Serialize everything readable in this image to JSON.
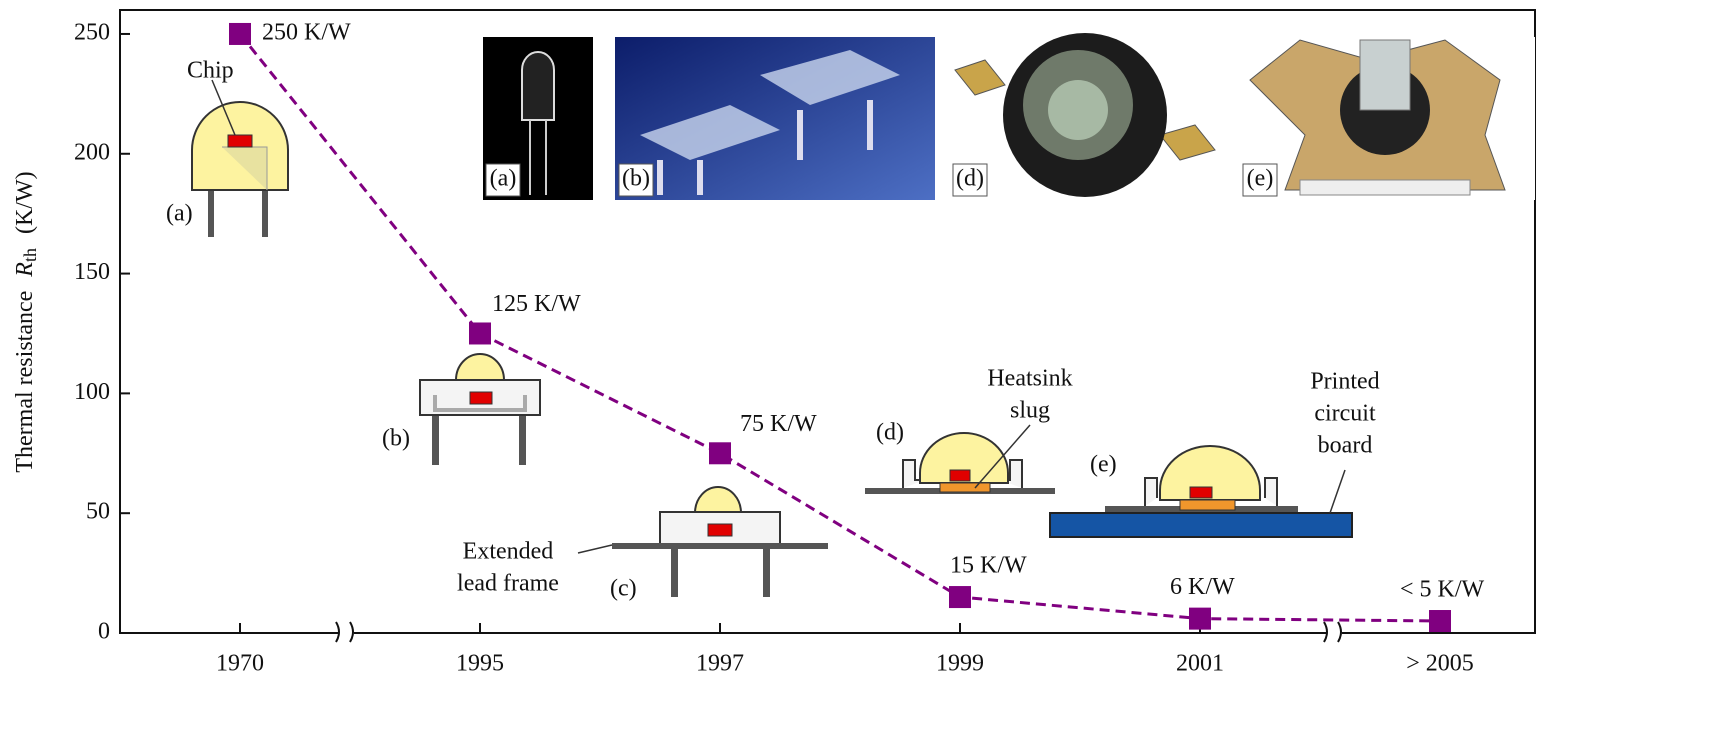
{
  "chart_data": {
    "type": "line",
    "categories": [
      "1970",
      "1995",
      "1997",
      "1999",
      "2001",
      "> 2005"
    ],
    "values": [
      250,
      125,
      75,
      15,
      6,
      5
    ],
    "value_labels": [
      "250 K/W",
      "125 K/W",
      "75 K/W",
      "15 K/W",
      "6 K/W",
      "< 5 K/W"
    ],
    "color": "#800080",
    "ylim": [
      0,
      260
    ],
    "yticks": [
      0,
      50,
      100,
      150,
      200,
      250
    ],
    "ylabel": {
      "text": "Thermal resistance",
      "symbol": "R",
      "subscript": "th",
      "unit": "(K/W)"
    },
    "diagram_labels": {
      "chip": "Chip",
      "a": "(a)",
      "b": "(b)",
      "c": "(c)",
      "d": "(d)",
      "e": "(e)",
      "lead_frame": [
        "Extended",
        "lead frame"
      ],
      "slug": [
        "Heatsink",
        "slug"
      ],
      "pcb": [
        "Printed",
        "circuit",
        "board"
      ]
    },
    "photo_labels": [
      "(a)",
      "(b)",
      "(d)",
      "(e)"
    ]
  }
}
